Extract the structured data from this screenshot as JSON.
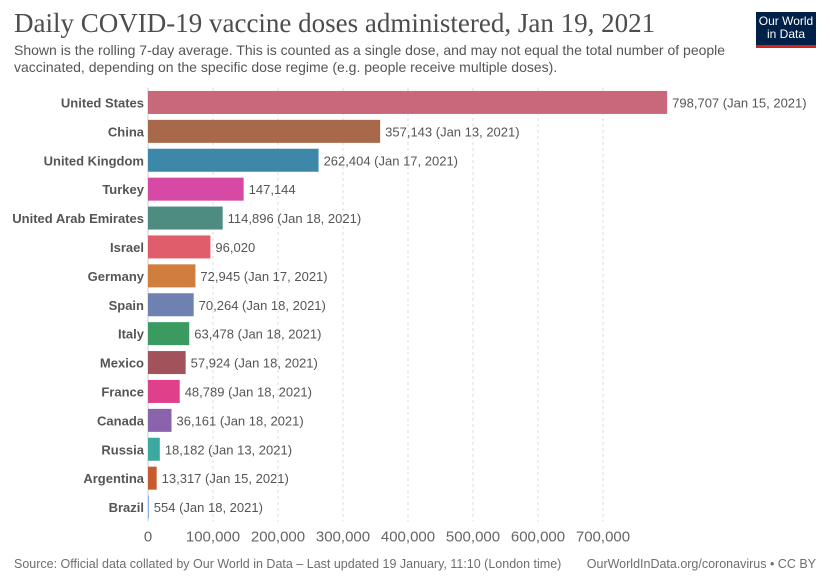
{
  "header": {
    "title": "Daily COVID-19 vaccine doses administered, Jan 19, 2021",
    "subtitle": "Shown is the rolling 7-day average. This is counted as a single dose, and may not equal the total number of people vaccinated, depending on the specific dose regime (e.g. people receive multiple doses).",
    "logo_line1": "Our World",
    "logo_line2": "in Data"
  },
  "footer": {
    "source": "Source: Official data collated by Our World in Data – Last updated 19 January, 11:10 (London time)",
    "link": "OurWorldInData.org/coronavirus • CC BY"
  },
  "colors": {
    "logo_bg": "#002147",
    "logo_accent": "#ce261e",
    "grid": "#dddddd"
  },
  "chart_data": {
    "type": "bar",
    "orientation": "horizontal",
    "title": "Daily COVID-19 vaccine doses administered, Jan 19, 2021",
    "xlim": [
      0,
      800000
    ],
    "x_ticks": [
      0,
      100000,
      200000,
      300000,
      400000,
      500000,
      600000,
      700000
    ],
    "x_tick_labels": [
      "0",
      "100,000",
      "200,000",
      "300,000",
      "400,000",
      "500,000",
      "600,000",
      "700,000"
    ],
    "grid": "vertical dashed",
    "categories": [
      "United States",
      "China",
      "United Kingdom",
      "Turkey",
      "United Arab Emirates",
      "Israel",
      "Germany",
      "Spain",
      "Italy",
      "Mexico",
      "France",
      "Canada",
      "Russia",
      "Argentina",
      "Brazil"
    ],
    "values": [
      798707,
      357143,
      262404,
      147144,
      114896,
      96020,
      72945,
      70264,
      63478,
      57924,
      48789,
      36161,
      18182,
      13317,
      554
    ],
    "value_labels": [
      "798,707 (Jan 15, 2021)",
      "357,143 (Jan 13, 2021)",
      "262,404 (Jan 17, 2021)",
      "147,144",
      "114,896 (Jan 18, 2021)",
      "96,020",
      "72,945 (Jan 17, 2021)",
      "70,264 (Jan 18, 2021)",
      "63,478 (Jan 18, 2021)",
      "57,924 (Jan 18, 2021)",
      "48,789 (Jan 18, 2021)",
      "36,161 (Jan 18, 2021)",
      "18,182 (Jan 13, 2021)",
      "13,317 (Jan 15, 2021)",
      "554 (Jan 18, 2021)"
    ],
    "bar_colors": [
      "#c9677b",
      "#a7694a",
      "#3d87a8",
      "#d64aa5",
      "#4e8b81",
      "#e05d6b",
      "#d07d3e",
      "#6e81b0",
      "#3b9a60",
      "#a2525a",
      "#e0408a",
      "#8a63ad",
      "#3ba9a0",
      "#c75b2e",
      "#6b9ee0"
    ]
  }
}
